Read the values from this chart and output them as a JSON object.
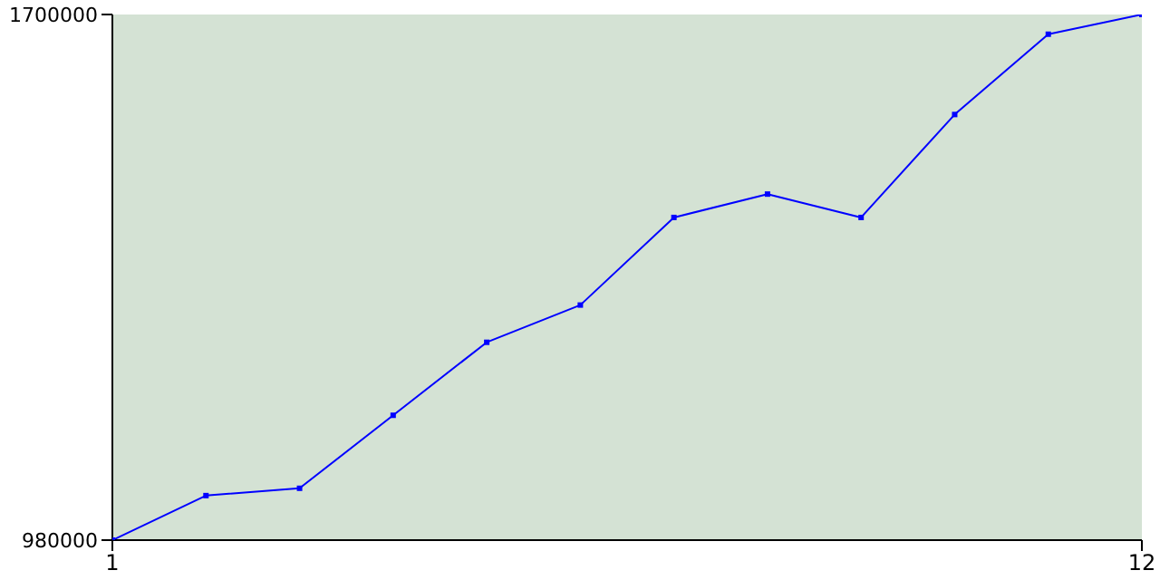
{
  "chart_data": {
    "type": "line",
    "x": [
      1,
      2,
      3,
      4,
      5,
      6,
      7,
      8,
      9,
      10,
      11,
      12
    ],
    "series": [
      {
        "color": "#0000ff",
        "values": [
          980000,
          1041000,
          1051000,
          1151000,
          1251000,
          1302000,
          1422000,
          1454000,
          1422000,
          1563000,
          1673000,
          1700000
        ]
      }
    ],
    "xlim": [
      1,
      12
    ],
    "xticks": [
      1,
      12
    ],
    "ylim": [
      980000,
      1700000
    ],
    "yticks": [
      980000,
      1700000
    ],
    "marker": "square",
    "grid": false,
    "legend": false
  }
}
